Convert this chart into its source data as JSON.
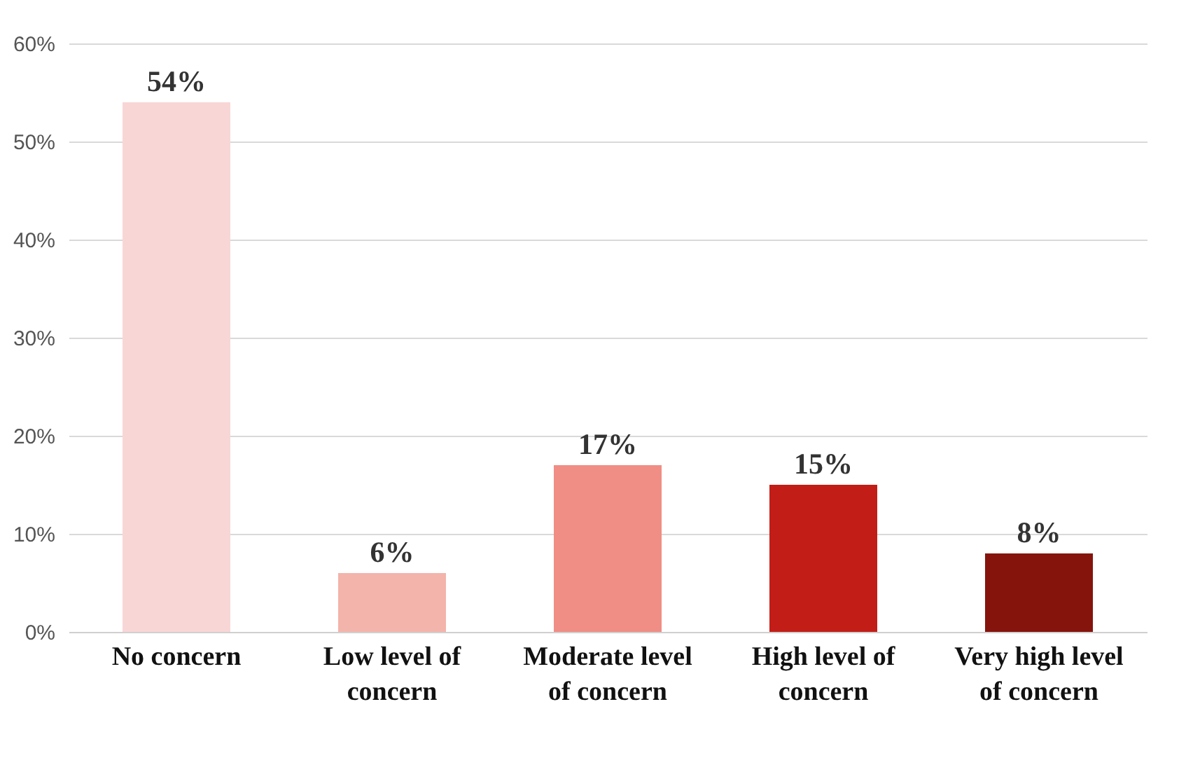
{
  "chart_data": {
    "type": "bar",
    "categories": [
      "No concern",
      "Low level of concern",
      "Moderate level of concern",
      "High level of concern",
      "Very high level of concern"
    ],
    "values": [
      54,
      6,
      17,
      15,
      8
    ],
    "colors": [
      "#f9d6d6",
      "#f3b4ab",
      "#f08d85",
      "#c21d17",
      "#85140c"
    ],
    "value_labels": [
      "54%",
      "6%",
      "17%",
      "15%",
      "8%"
    ],
    "ylim": [
      0,
      60
    ],
    "yticks": [
      {
        "value": 0,
        "label": "0%"
      },
      {
        "value": 10,
        "label": "10%"
      },
      {
        "value": 20,
        "label": "20%"
      },
      {
        "value": 30,
        "label": "30%"
      },
      {
        "value": 40,
        "label": "40%"
      },
      {
        "value": 50,
        "label": "50%"
      },
      {
        "value": 60,
        "label": "60%"
      }
    ],
    "grid": "y"
  }
}
